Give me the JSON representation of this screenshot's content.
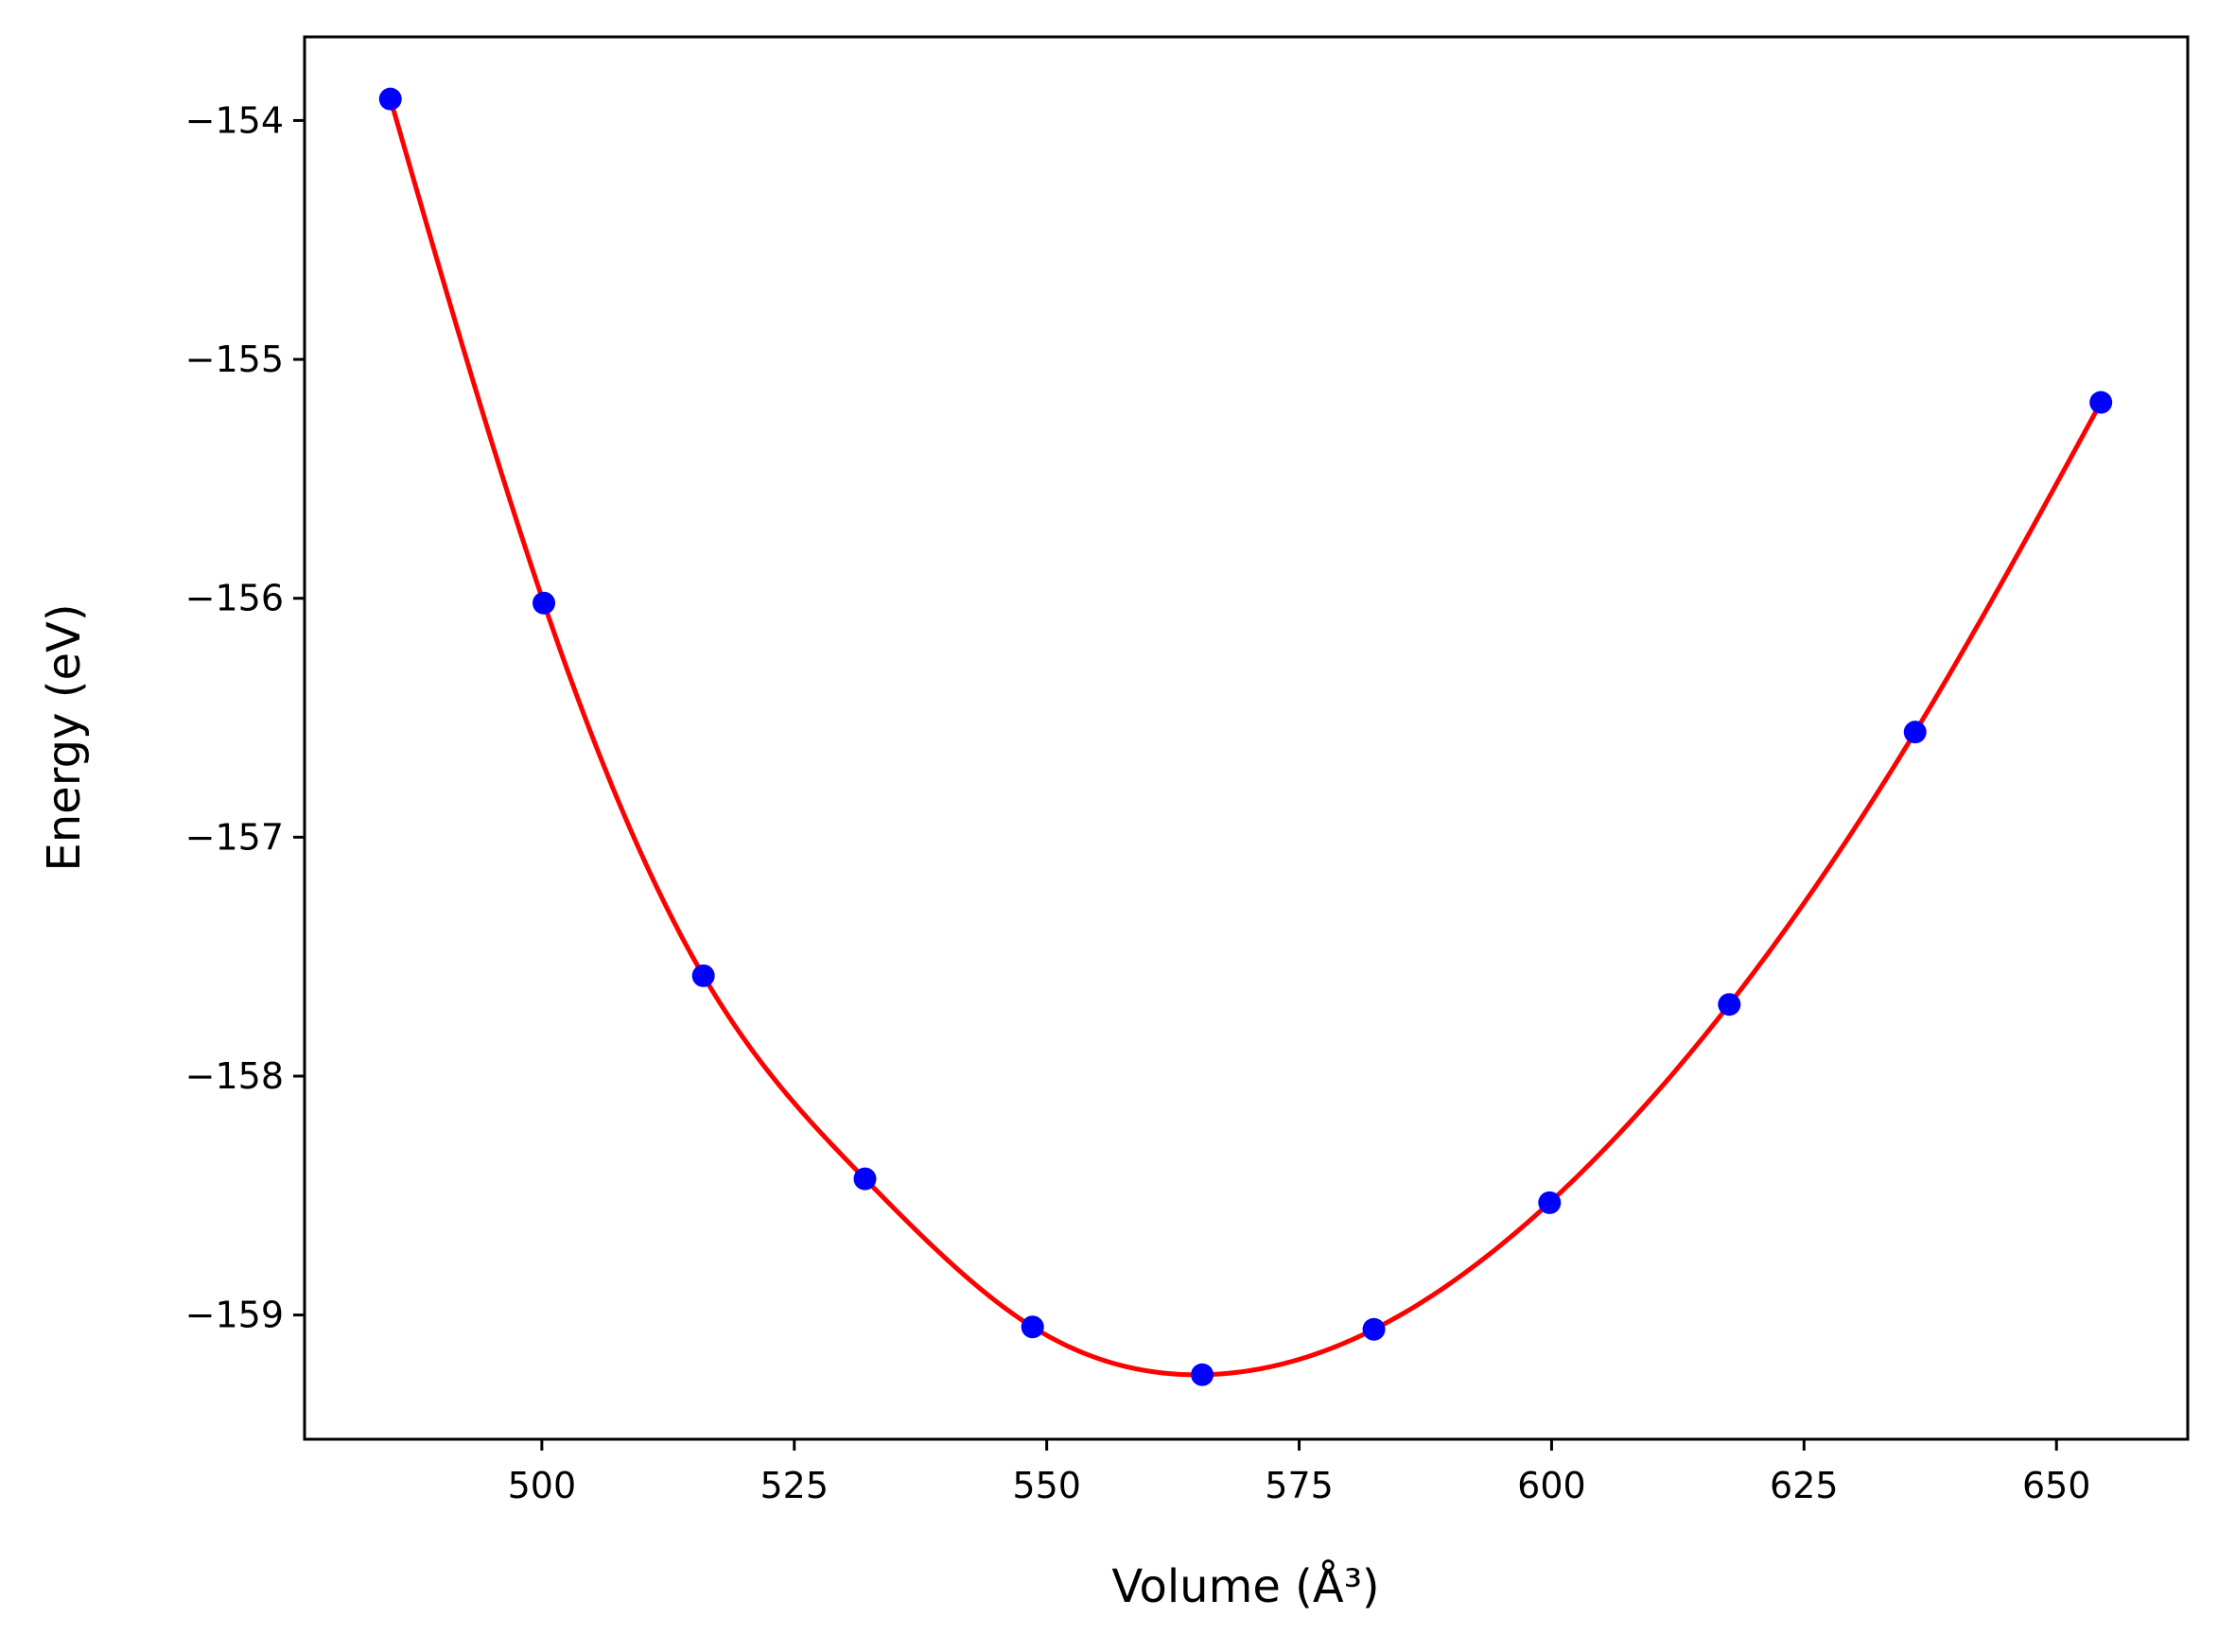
{
  "chart_data": {
    "type": "scatter",
    "title": "",
    "xlabel": "Volume (Å³)",
    "ylabel": "Energy (eV)",
    "xlim": [
      476.5,
      663
    ],
    "ylim": [
      -159.52,
      -153.65
    ],
    "x_ticks": [
      500,
      525,
      550,
      575,
      600,
      625,
      650
    ],
    "y_ticks": [
      -154,
      -155,
      -156,
      -157,
      -158,
      -159
    ],
    "x_tick_labels": [
      "500",
      "525",
      "550",
      "575",
      "600",
      "625",
      "650"
    ],
    "y_tick_labels": [
      "−154",
      "−155",
      "−156",
      "−157",
      "−158",
      "−159"
    ],
    "grid": false,
    "series": [
      {
        "kind": "points",
        "color": "#0000ff",
        "x": [
          485.0,
          500.2,
          516.0,
          532.0,
          548.6,
          565.4,
          582.4,
          599.8,
          617.6,
          636.0,
          654.4
        ],
        "y": [
          -153.91,
          -156.02,
          -157.58,
          -158.43,
          -159.05,
          -159.25,
          -159.06,
          -158.53,
          -157.7,
          -156.56,
          -155.18
        ]
      },
      {
        "kind": "fit-curve",
        "color": "#ff0000",
        "x_range": [
          485.0,
          654.4
        ]
      }
    ]
  }
}
